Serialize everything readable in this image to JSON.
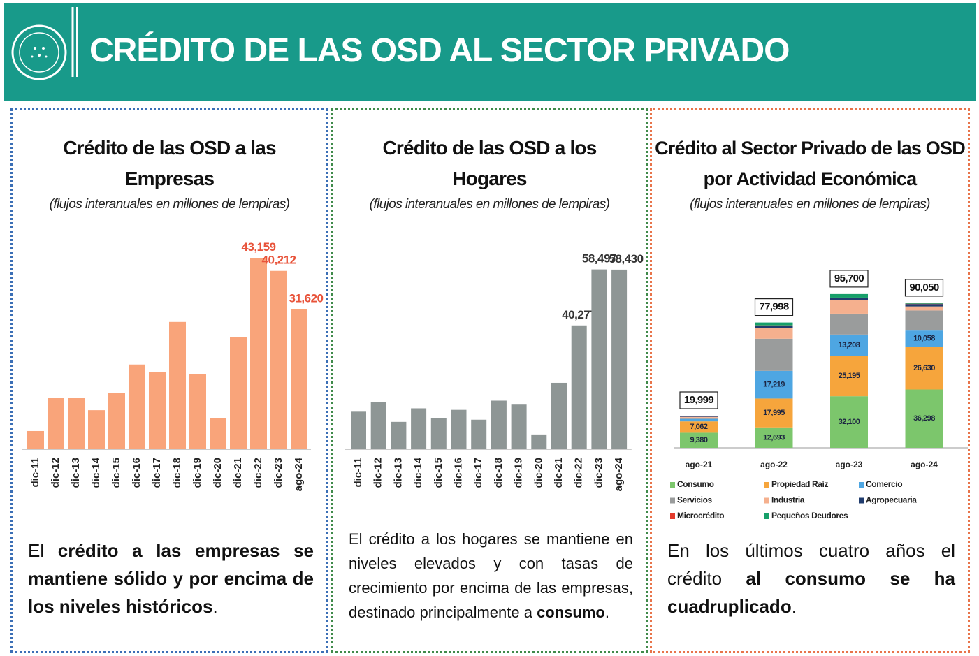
{
  "header": {
    "title": "CRÉDITO DE LAS OSD AL SECTOR PRIVADO"
  },
  "chart_data": [
    {
      "type": "bar",
      "title": "Crédito de las OSD a las Empresas",
      "subtitle": "(flujos interanuales en millones de lempiras)",
      "categories": [
        "dic-11",
        "dic-12",
        "dic-13",
        "dic-14",
        "dic-15",
        "dic-16",
        "dic-17",
        "dic-18",
        "dic-19",
        "dic-20",
        "dic-21",
        "dic-22",
        "dic-23",
        "ago-24"
      ],
      "values": [
        4100,
        11600,
        11600,
        8800,
        12700,
        19100,
        17400,
        28700,
        17000,
        7000,
        25300,
        43159,
        40212,
        31620
      ],
      "value_labels": [
        null,
        null,
        null,
        null,
        null,
        null,
        null,
        null,
        null,
        null,
        null,
        "43,159",
        "40,212",
        "31,620"
      ],
      "color": "#f9a47a",
      "value_label_color": "#e8533a",
      "ylim": [
        0,
        46000
      ],
      "description": [
        "El ",
        "crédito a las empresas se mantiene sólido y por encima de los niveles históricos",
        "."
      ],
      "description_bold": [
        false,
        true,
        false
      ]
    },
    {
      "type": "bar",
      "title": "Crédito de las OSD a los Hogares",
      "subtitle": "(flujos interanuales en millones de lempiras)",
      "categories": [
        "dic-11",
        "dic-12",
        "dic-13",
        "dic-14",
        "dic-15",
        "dic-16",
        "dic-17",
        "dic-18",
        "dic-19",
        "dic-20",
        "dic-21",
        "dic-22",
        "dic-23",
        "ago-24"
      ],
      "values": [
        12200,
        15400,
        8900,
        13300,
        10100,
        12800,
        9600,
        15800,
        14500,
        4800,
        21600,
        40277,
        58497,
        58430
      ],
      "value_labels": [
        null,
        null,
        null,
        null,
        null,
        null,
        null,
        null,
        null,
        null,
        null,
        "40,277",
        "58,497",
        "58,430"
      ],
      "color": "#8e9695",
      "value_label_color": "#333333",
      "ylim": [
        0,
        65000
      ],
      "description": [
        "El crédito a los hogares se mantiene en niveles elevados y con tasas de crecimiento por encima de las empresas, destinado principalmente a ",
        "consumo",
        "."
      ],
      "description_bold": [
        false,
        true,
        false
      ]
    },
    {
      "type": "bar",
      "stacked": true,
      "title": "Crédito al Sector Privado de las OSD por Actividad Económica",
      "subtitle": "(flujos interanuales en millones de lempiras)",
      "categories": [
        "ago-21",
        "ago-22",
        "ago-23",
        "ago-24"
      ],
      "series": [
        {
          "name": "Consumo",
          "color": "#7cc66c",
          "values": [
            9380,
            12693,
            32100,
            36298
          ],
          "value_labels": [
            "9,380",
            "12,693",
            "32,100",
            "36,298"
          ]
        },
        {
          "name": "Propiedad Raíz",
          "color": "#f6a53c",
          "values": [
            7062,
            17995,
            25195,
            26630
          ],
          "value_labels": [
            "7,062",
            "17,995",
            "25,195",
            "26,630"
          ]
        },
        {
          "name": "Comercio",
          "color": "#4ea6e2",
          "values": [
            1500,
            17219,
            13208,
            10058
          ],
          "value_labels": [
            null,
            "17,219",
            "13,208",
            "10,058"
          ]
        },
        {
          "name": "Servicios",
          "color": "#9a9c9c",
          "values": [
            800,
            20000,
            13000,
            12500
          ]
        },
        {
          "name": "Industria",
          "color": "#f5b08e",
          "values": [
            500,
            6500,
            8500,
            2500
          ]
        },
        {
          "name": "Agropecuaria",
          "color": "#203c6e",
          "values": [
            300,
            1500,
            1200,
            1500
          ]
        },
        {
          "name": "Microcrédito",
          "color": "#e23a2c",
          "values": [
            100,
            300,
            300,
            200
          ]
        },
        {
          "name": "Pequeños Deudores",
          "color": "#17a06a",
          "values": [
            357,
            1791,
            2197,
            364
          ]
        }
      ],
      "totals": [
        19999,
        77998,
        95700,
        90050
      ],
      "total_labels": [
        "19,999",
        "77,998",
        "95,700",
        "90,050"
      ],
      "ylim": [
        0,
        110000
      ],
      "description": [
        "En los últimos cuatro años el crédito ",
        "al consumo se ha cuadruplicado",
        "."
      ],
      "description_bold": [
        false,
        true,
        false
      ]
    }
  ]
}
